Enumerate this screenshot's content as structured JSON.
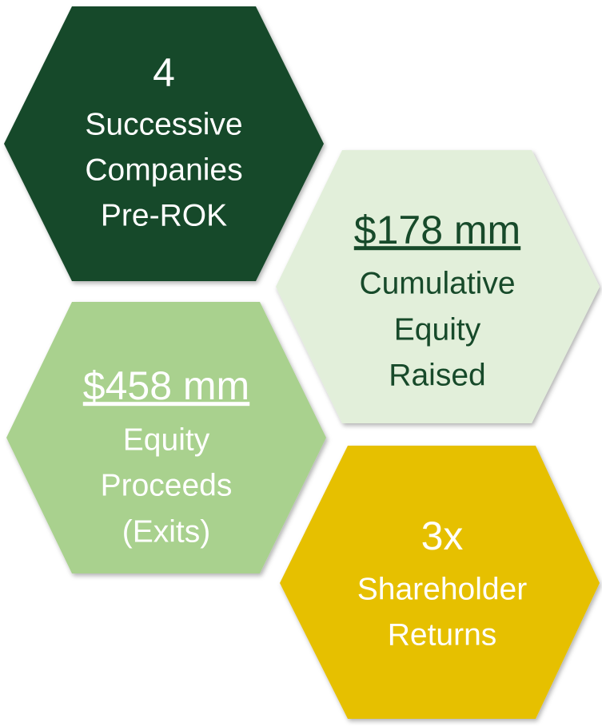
{
  "hexagons": [
    {
      "headline": "4",
      "lines": [
        "Successive",
        "Companies",
        "Pre-ROK"
      ]
    },
    {
      "headline": "$178 mm",
      "lines": [
        "Cumulative",
        "Equity",
        "Raised"
      ]
    },
    {
      "headline": "$458 mm",
      "lines": [
        "Equity",
        "Proceeds",
        "(Exits)"
      ]
    },
    {
      "headline": "3x",
      "lines": [
        "Shareholder",
        "Returns"
      ]
    }
  ]
}
